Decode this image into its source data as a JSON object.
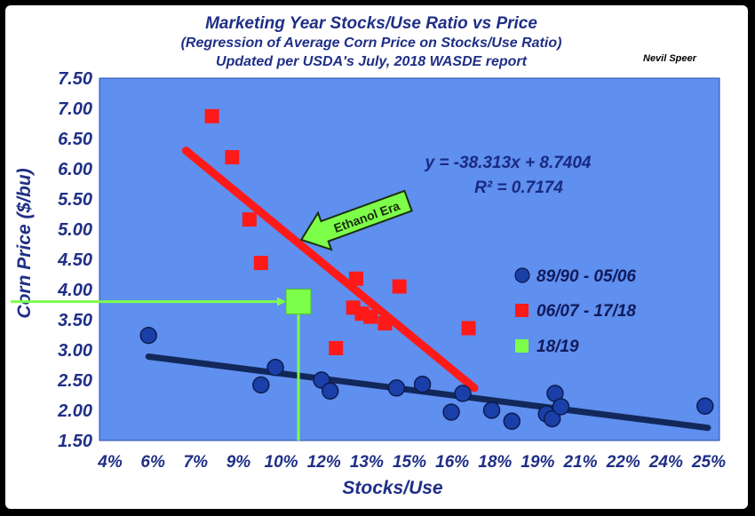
{
  "chart_data": {
    "type": "scatter",
    "title": "Marketing Year Stocks/Use Ratio vs Price",
    "subtitle": "(Regression of Average Corn Price on Stocks/Use Ratio)",
    "subtitle2": "Updated per USDA's July, 2018 WASDE report",
    "author": "Nevil Speer",
    "xlabel": "Stocks/Use",
    "ylabel": "Corn Price ($/bu)",
    "xlim": [
      4,
      25.5
    ],
    "ylim": [
      1.5,
      7.5
    ],
    "x_ticks": [
      "4%",
      "6%",
      "7%",
      "9%",
      "10%",
      "12%",
      "13%",
      "15%",
      "16%",
      "18%",
      "19%",
      "21%",
      "22%",
      "24%",
      "25%"
    ],
    "y_ticks": [
      "7.50",
      "7.00",
      "6.50",
      "6.00",
      "5.50",
      "5.00",
      "4.50",
      "4.00",
      "3.50",
      "3.00",
      "2.50",
      "2.00",
      "1.50"
    ],
    "equation": "y = -38.313x + 8.7404",
    "r_squared": "R² = 0.7174",
    "annotation": "Ethanol Era",
    "legend_position": "right",
    "colors": {
      "plot_bg": "#5f8fef",
      "blue_series": "#1a3fa8",
      "red_series": "#ff1a1a",
      "green_series": "#7dff4a",
      "trend_blue": "#13285a",
      "trend_red": "#ff1a1a",
      "text": "#1f2f86"
    },
    "series": [
      {
        "name": "89/90 - 05/06",
        "marker": "circle",
        "points": [
          [
            5.7,
            3.24
          ],
          [
            9.6,
            2.42
          ],
          [
            10.1,
            2.71
          ],
          [
            11.7,
            2.5
          ],
          [
            12.0,
            2.32
          ],
          [
            14.3,
            2.37
          ],
          [
            15.2,
            2.43
          ],
          [
            16.2,
            1.97
          ],
          [
            16.6,
            2.28
          ],
          [
            17.6,
            2.0
          ],
          [
            18.3,
            1.82
          ],
          [
            19.5,
            1.94
          ],
          [
            19.7,
            1.86
          ],
          [
            19.8,
            2.28
          ],
          [
            20.0,
            2.06
          ],
          [
            25.0,
            2.07
          ]
        ]
      },
      {
        "name": "06/07 - 17/18",
        "marker": "square",
        "points": [
          [
            7.9,
            6.87
          ],
          [
            8.6,
            6.19
          ],
          [
            9.2,
            5.16
          ],
          [
            9.6,
            4.44
          ],
          [
            12.2,
            3.03
          ],
          [
            12.8,
            3.7
          ],
          [
            12.9,
            4.18
          ],
          [
            13.1,
            3.6
          ],
          [
            13.4,
            3.55
          ],
          [
            13.9,
            3.44
          ],
          [
            14.4,
            4.05
          ],
          [
            16.8,
            3.36
          ]
        ]
      },
      {
        "name": "18/19",
        "marker": "square",
        "points": [
          [
            10.9,
            3.8
          ]
        ]
      }
    ],
    "trend_lines": [
      {
        "series": "89/90 - 05/06",
        "from": [
          5.7,
          2.89
        ],
        "to": [
          25.1,
          1.71
        ]
      },
      {
        "series": "06/07 - 17/18",
        "from": [
          7.0,
          6.3
        ],
        "to": [
          17.0,
          2.37
        ]
      }
    ],
    "reference_value": {
      "x": 10.9,
      "y": 3.8
    }
  }
}
